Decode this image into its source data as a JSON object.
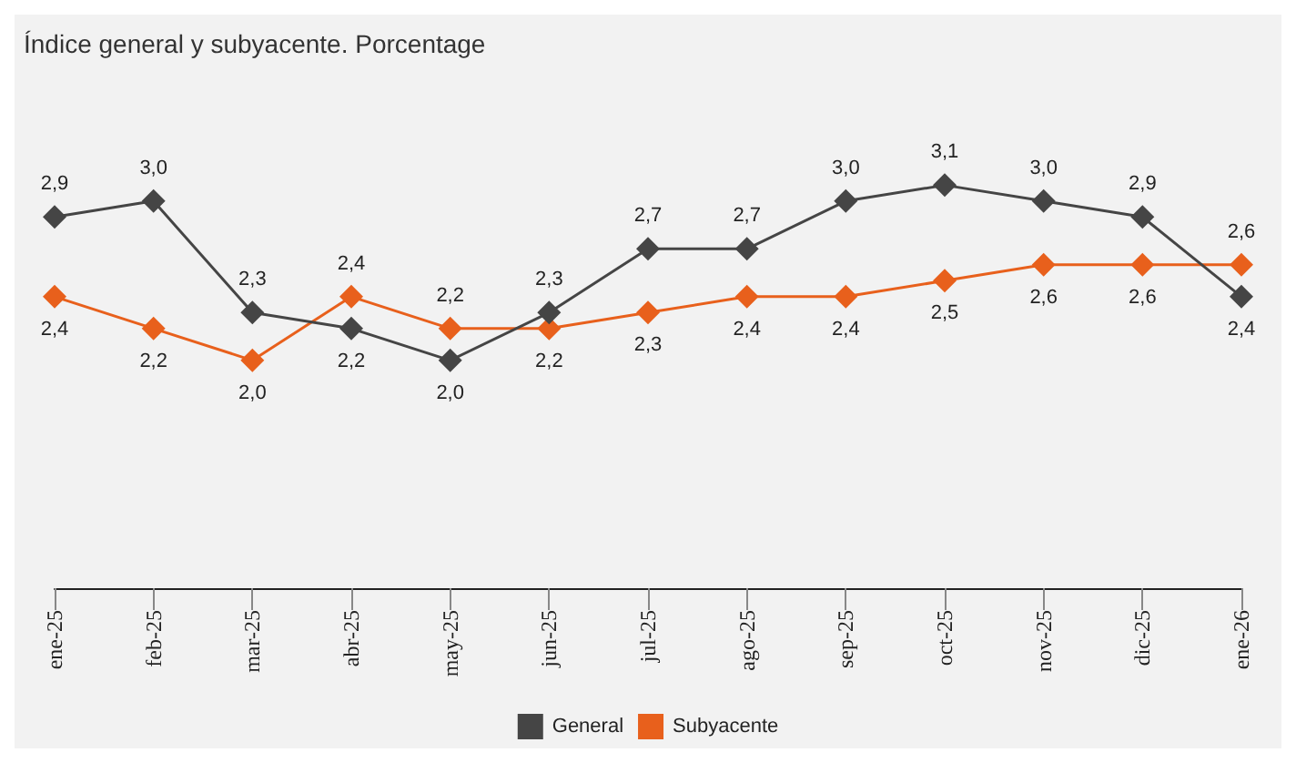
{
  "chart_data": {
    "type": "line",
    "title": "Índice general y subyacente. Porcentage",
    "categories": [
      "ene-25",
      "feb-25",
      "mar-25",
      "abr-25",
      "may-25",
      "jun-25",
      "jul-25",
      "ago-25",
      "sep-25",
      "oct-25",
      "nov-25",
      "dic-25",
      "ene-26"
    ],
    "series": [
      {
        "name": "General",
        "color": "#454545",
        "values": [
          2.9,
          3.0,
          2.3,
          2.2,
          2.0,
          2.3,
          2.7,
          2.7,
          3.0,
          3.1,
          3.0,
          2.9,
          2.4
        ],
        "value_labels": [
          "2,9",
          "3,0",
          "2,3",
          "2,2",
          "2,0",
          "2,3",
          "2,7",
          "2,7",
          "3,0",
          "3,1",
          "3,0",
          "2,9",
          "2,4"
        ]
      },
      {
        "name": "Subyacente",
        "color": "#e8601c",
        "values": [
          2.4,
          2.2,
          2.0,
          2.4,
          2.2,
          2.2,
          2.3,
          2.4,
          2.4,
          2.5,
          2.6,
          2.6,
          2.6
        ],
        "value_labels": [
          "2,4",
          "2,2",
          "2,0",
          "2,4",
          "2,2",
          "2,2",
          "2,3",
          "2,4",
          "2,4",
          "2,5",
          "2,6",
          "2,6",
          "2,6"
        ]
      }
    ],
    "marker": "diamond",
    "line_style": "solid",
    "legend": "bottom"
  }
}
